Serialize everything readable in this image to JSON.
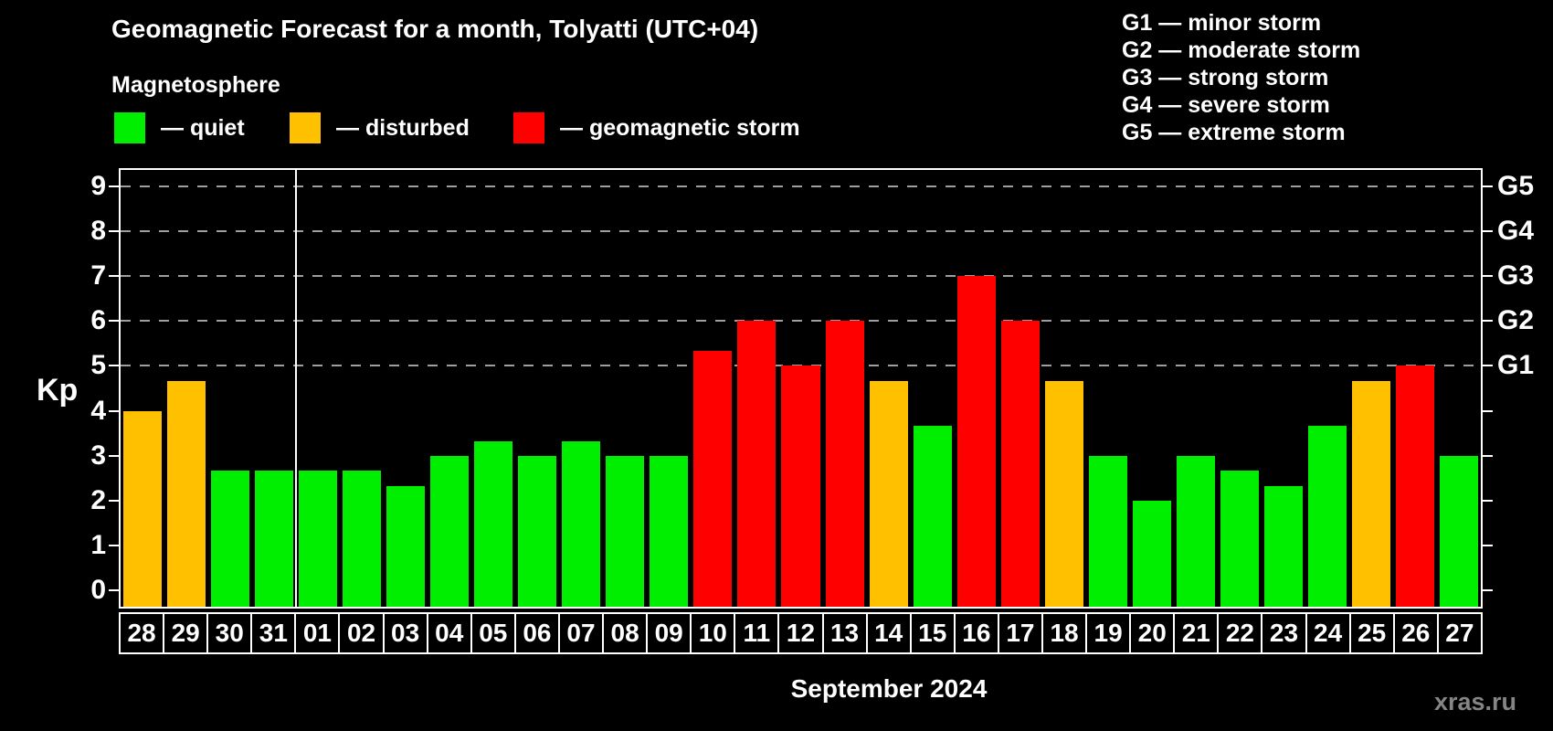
{
  "header": {
    "title": "Geomagnetic Forecast for a month, Tolyatti (UTC+04)",
    "subtitle": "Magnetosphere"
  },
  "legend": {
    "items": [
      {
        "key": "quiet",
        "label": "— quiet",
        "color": "#00ee00"
      },
      {
        "key": "disturbed",
        "label": "— disturbed",
        "color": "#ffc000"
      },
      {
        "key": "storm",
        "label": "— geomagnetic storm",
        "color": "#ff0000"
      }
    ]
  },
  "g_legend": {
    "lines": [
      "G1 — minor storm",
      "G2 — moderate storm",
      "G3 — strong storm",
      "G4 — severe storm",
      "G5 — extreme storm"
    ]
  },
  "axes": {
    "ylabel": "Kp",
    "left_tick_labels": [
      "0",
      "1",
      "2",
      "3",
      "4",
      "5",
      "6",
      "7",
      "8",
      "9"
    ],
    "right_labels": [
      {
        "kp": 5,
        "label": "G1"
      },
      {
        "kp": 6,
        "label": "G2"
      },
      {
        "kp": 7,
        "label": "G3"
      },
      {
        "kp": 8,
        "label": "G4"
      },
      {
        "kp": 9,
        "label": "G5"
      }
    ]
  },
  "xlabel": "September 2024",
  "watermark": "xras.ru",
  "chart_data": {
    "type": "bar",
    "title": "Geomagnetic Forecast for a month, Tolyatti (UTC+04)",
    "ylabel": "Kp",
    "xlabel": "September 2024",
    "ylim": [
      0,
      9
    ],
    "grid_kp": [
      5,
      6,
      7,
      8,
      9
    ],
    "grid_style": "dashed",
    "month_separator_after_index": 3,
    "categories": [
      "28",
      "29",
      "30",
      "31",
      "01",
      "02",
      "03",
      "04",
      "05",
      "06",
      "07",
      "08",
      "09",
      "10",
      "11",
      "12",
      "13",
      "14",
      "15",
      "16",
      "17",
      "18",
      "19",
      "20",
      "21",
      "22",
      "23",
      "24",
      "25",
      "26",
      "27"
    ],
    "values": [
      4.0,
      4.67,
      2.67,
      2.67,
      2.67,
      2.67,
      2.33,
      3.0,
      3.33,
      3.0,
      3.33,
      3.0,
      3.0,
      5.33,
      6.0,
      5.0,
      6.0,
      4.67,
      3.67,
      7.0,
      6.0,
      4.67,
      3.0,
      2.0,
      3.0,
      2.67,
      2.33,
      3.67,
      4.67,
      5.0,
      3.0
    ],
    "statuses": [
      "disturbed",
      "disturbed",
      "quiet",
      "quiet",
      "quiet",
      "quiet",
      "quiet",
      "quiet",
      "quiet",
      "quiet",
      "quiet",
      "quiet",
      "quiet",
      "storm",
      "storm",
      "storm",
      "storm",
      "disturbed",
      "quiet",
      "storm",
      "storm",
      "disturbed",
      "quiet",
      "quiet",
      "quiet",
      "quiet",
      "quiet",
      "quiet",
      "disturbed",
      "storm",
      "quiet"
    ],
    "status_colors": {
      "quiet": "#00ee00",
      "disturbed": "#ffc000",
      "storm": "#ff0000"
    }
  }
}
